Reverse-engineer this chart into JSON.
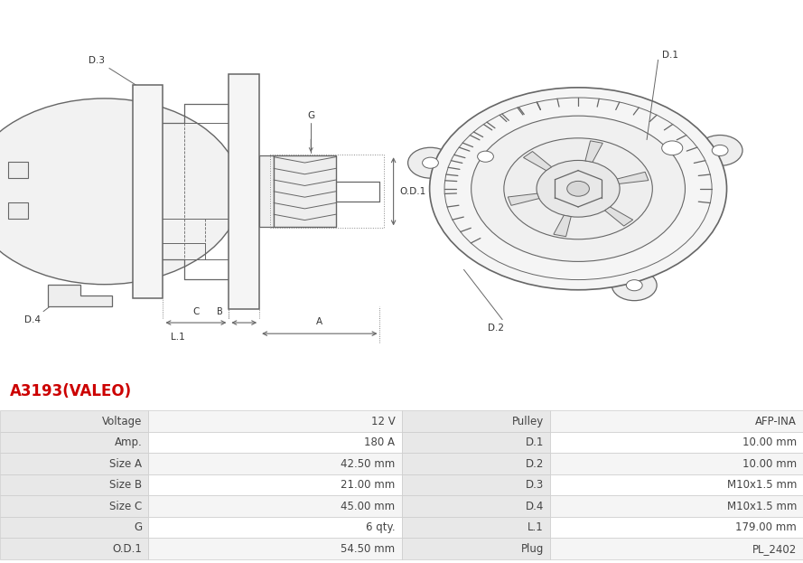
{
  "title": "A3193(VALEO)",
  "title_color": "#cc0000",
  "background_color": "#ffffff",
  "table": {
    "rows": [
      [
        "Voltage",
        "12 V",
        "Pulley",
        "AFP-INA"
      ],
      [
        "Amp.",
        "180 A",
        "D.1",
        "10.00 mm"
      ],
      [
        "Size A",
        "42.50 mm",
        "D.2",
        "10.00 mm"
      ],
      [
        "Size B",
        "21.00 mm",
        "D.3",
        "M10x1.5 mm"
      ],
      [
        "Size C",
        "45.00 mm",
        "D.4",
        "M10x1.5 mm"
      ],
      [
        "G",
        "6 qty.",
        "L.1",
        "179.00 mm"
      ],
      [
        "O.D.1",
        "54.50 mm",
        "Plug",
        "PL_2402"
      ]
    ],
    "label_bg": "#e8e8e8",
    "val_even_bg": "#f5f5f5",
    "val_odd_bg": "#ffffff",
    "border_color": "#cccccc",
    "text_color": "#444444",
    "font_size": 8.5
  },
  "lc": "#666666",
  "lc2": "#888888"
}
